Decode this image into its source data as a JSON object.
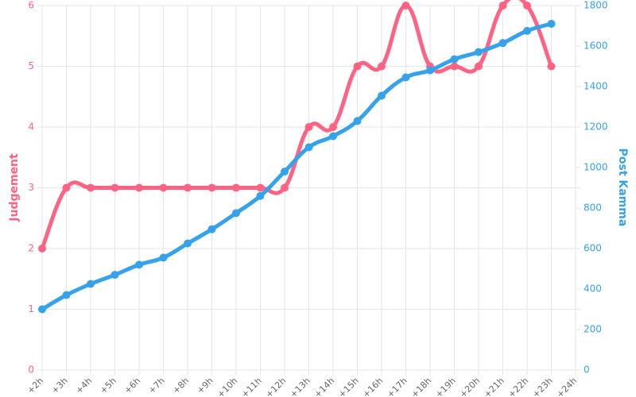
{
  "chart_data": {
    "type": "line",
    "categories": [
      "+2h",
      "+3h",
      "+4h",
      "+5h",
      "+6h",
      "+7h",
      "+8h",
      "+9h",
      "+10h",
      "+11h",
      "+12h",
      "+13h",
      "+14h",
      "+15h",
      "+16h",
      "+17h",
      "+18h",
      "+19h",
      "+20h",
      "+21h",
      "+22h",
      "+23h",
      "+24h"
    ],
    "y_label": "Judgement",
    "y2_label": "Post Kamma",
    "series": [
      {
        "name": "Judgement",
        "color": "#ff6384",
        "axis": "y",
        "values": [
          2,
          3,
          3,
          3,
          3,
          3,
          3,
          3,
          3,
          3,
          3,
          4,
          4,
          5,
          5,
          6,
          5,
          5,
          5,
          6,
          6,
          5,
          null
        ]
      },
      {
        "name": "Post Kamma",
        "color": "#36a2eb",
        "axis": "y2",
        "values": [
          300,
          370,
          425,
          470,
          520,
          555,
          625,
          695,
          775,
          860,
          980,
          1100,
          1155,
          1230,
          1355,
          1445,
          1480,
          1535,
          1570,
          1615,
          1675,
          1710,
          null
        ]
      }
    ],
    "ylim": [
      0,
      6
    ],
    "yticks": [
      0,
      1,
      2,
      3,
      4,
      5,
      6
    ],
    "y2lim": [
      0,
      1800
    ],
    "y2ticks": [
      0,
      200,
      400,
      600,
      800,
      1000,
      1200,
      1400,
      1600,
      1800
    ],
    "grid": true
  }
}
